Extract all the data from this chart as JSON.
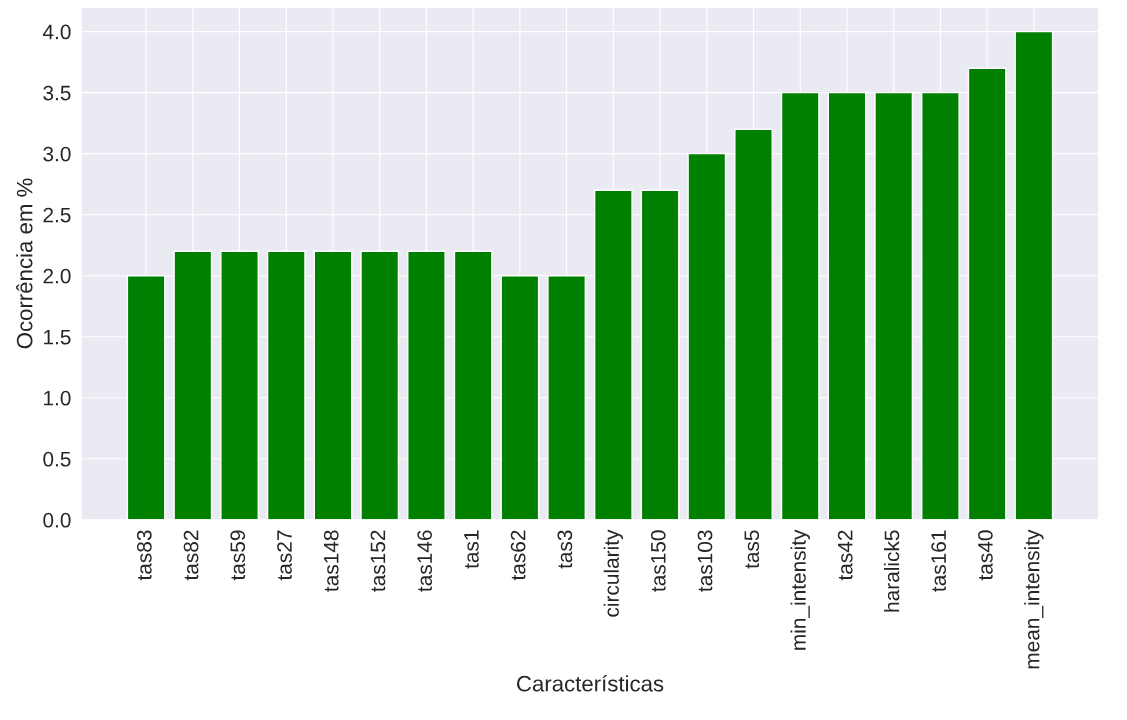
{
  "chart_data": {
    "type": "bar",
    "xlabel": "Características",
    "ylabel": "Ocorrência em %",
    "categories": [
      "tas83",
      "tas82",
      "tas59",
      "tas27",
      "tas148",
      "tas152",
      "tas146",
      "tas1",
      "tas62",
      "tas3",
      "circularity",
      "tas150",
      "tas103",
      "tas5",
      "min_intensity",
      "tas42",
      "haralick5",
      "tas161",
      "tas40",
      "mean_intensity"
    ],
    "values": [
      2.0,
      2.2,
      2.2,
      2.2,
      2.2,
      2.2,
      2.2,
      2.2,
      2.0,
      2.0,
      2.7,
      2.7,
      3.0,
      3.2,
      3.5,
      3.5,
      3.5,
      3.5,
      3.7,
      4.0
    ],
    "color": "#008000",
    "ylim": [
      0,
      4.2
    ],
    "yticks": [
      {
        "value": 0,
        "label": "0.0"
      },
      {
        "value": 0.5,
        "label": "0.5"
      },
      {
        "value": 1,
        "label": "1.0"
      },
      {
        "value": 1.5,
        "label": "1.5"
      },
      {
        "value": 2,
        "label": "2.0"
      },
      {
        "value": 2.5,
        "label": "2.5"
      },
      {
        "value": 3,
        "label": "3.0"
      },
      {
        "value": 3.5,
        "label": "3.5"
      },
      {
        "value": 4,
        "label": "4.0"
      }
    ],
    "grid": true
  }
}
